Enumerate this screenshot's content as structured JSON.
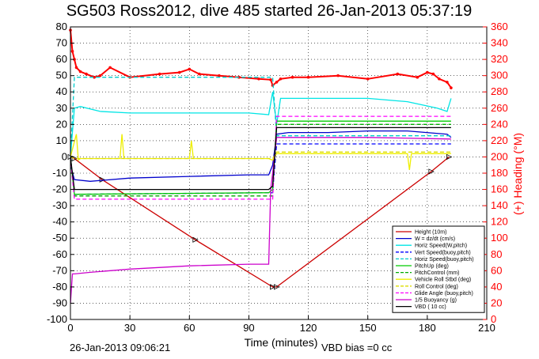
{
  "chart_data": {
    "type": "line",
    "title": "SG503 Ross2012, dive 485 started 26-Jan-2013 05:37:19",
    "xlabel": "Time (minutes)",
    "ylabel_right": "(+) Heading (°M)",
    "xlim": [
      0,
      210
    ],
    "ylim": [
      -100,
      80
    ],
    "ylim_right": [
      0,
      360
    ],
    "x_ticks": [
      "0",
      "30",
      "60",
      "90",
      "120",
      "150",
      "180",
      "210"
    ],
    "y_ticks": [
      "-100",
      "-90",
      "-80",
      "-70",
      "-60",
      "-50",
      "-40",
      "-30",
      "-20",
      "-10",
      "0",
      "10",
      "20",
      "30",
      "40",
      "50",
      "60",
      "70",
      "80"
    ],
    "y2_ticks": [
      "0",
      "20",
      "40",
      "60",
      "80",
      "100",
      "120",
      "140",
      "160",
      "180",
      "200",
      "220",
      "240",
      "260",
      "280",
      "300",
      "320",
      "340",
      "360"
    ],
    "grid": true,
    "legend_position": "bottom-right",
    "footer_left": "26-Jan-2013 09:06:21",
    "footer_right": "VBD bias =0 cc",
    "series": [
      {
        "name": "Heading",
        "color": "#ff0000",
        "axis": "right",
        "style": "solid",
        "markers": "dots",
        "x": [
          0,
          1,
          2,
          3,
          5,
          8,
          12,
          15,
          20,
          30,
          45,
          55,
          60,
          65,
          75,
          85,
          95,
          101,
          102,
          104,
          106,
          112,
          120,
          135,
          150,
          165,
          175,
          180,
          183,
          186,
          190,
          192
        ],
        "y": [
          356,
          330,
          320,
          310,
          305,
          302,
          298,
          300,
          310,
          298,
          302,
          304,
          308,
          302,
          300,
          298,
          296,
          295,
          288,
          292,
          296,
          298,
          298,
          300,
          296,
          302,
          298,
          304,
          302,
          296,
          292,
          285
        ]
      },
      {
        "name": "Height (10m)",
        "color": "#cc0000",
        "axis": "left",
        "style": "solid",
        "markers": "triangles",
        "x": [
          0,
          2,
          16,
          63,
          102,
          104,
          182,
          191
        ],
        "y": [
          0,
          -1,
          -14,
          -51,
          -80,
          -80,
          -9,
          0
        ]
      },
      {
        "name": "W = dz/dt (cm/s)",
        "color": "#0000cc",
        "axis": "left",
        "style": "solid",
        "x": [
          0,
          2,
          10,
          30,
          60,
          90,
          100,
          102,
          104,
          110,
          130,
          150,
          170,
          190,
          192
        ],
        "y": [
          -5,
          -14,
          -15,
          -13,
          -12,
          -11,
          -11,
          -5,
          14,
          15,
          15,
          16,
          16,
          14,
          12
        ]
      },
      {
        "name": "Horiz Speed(W,pitch)",
        "color": "#00e5e5",
        "axis": "left",
        "style": "solid",
        "x": [
          0,
          2,
          5,
          15,
          30,
          60,
          90,
          100,
          102,
          104,
          106,
          120,
          150,
          170,
          185,
          190,
          192
        ],
        "y": [
          0,
          30,
          31,
          28,
          27,
          27,
          27,
          26,
          40,
          20,
          36,
          36,
          36,
          34,
          30,
          28,
          36
        ]
      },
      {
        "name": "Vert Speed(buoy,pitch)",
        "color": "#0000ff",
        "axis": "left",
        "style": "dashed",
        "x": [
          0,
          2,
          102,
          104,
          192
        ],
        "y": [
          0,
          -23,
          -22,
          8,
          8
        ]
      },
      {
        "name": "Horiz Speed(buoy,pitch)",
        "color": "#00cccc",
        "axis": "left",
        "style": "dashed",
        "x": [
          0,
          2,
          102,
          104,
          192
        ],
        "y": [
          0,
          49,
          49,
          13,
          13
        ]
      },
      {
        "name": "PitchUp (deg)",
        "color": "#00cc00",
        "axis": "left",
        "style": "solid",
        "x": [
          0,
          2,
          100,
          102,
          104,
          192
        ],
        "y": [
          0,
          -23,
          -22,
          -20,
          22,
          22
        ]
      },
      {
        "name": "PitchControl (mm)",
        "color": "#00aa00",
        "axis": "left",
        "style": "dashed",
        "x": [
          0,
          2,
          102,
          104,
          192
        ],
        "y": [
          0,
          -24,
          -24,
          20,
          20
        ]
      },
      {
        "name": "Vehicle Roll Stbd (deg)",
        "color": "#eeee00",
        "axis": "left",
        "style": "solid",
        "x": [
          0,
          3,
          4,
          5,
          25,
          26,
          27,
          60,
          61,
          62,
          63,
          100,
          102,
          104,
          170,
          171,
          172,
          192
        ],
        "y": [
          0,
          14,
          -2,
          -1,
          -1,
          14,
          -1,
          -1,
          10,
          -1,
          -1,
          -1,
          -2,
          2,
          2,
          -8,
          2,
          2
        ]
      },
      {
        "name": "Roll Control (deg)",
        "color": "#dddd00",
        "axis": "left",
        "style": "dashed",
        "x": [
          0,
          2,
          102,
          104,
          192
        ],
        "y": [
          0,
          -1,
          -1,
          3,
          3
        ]
      },
      {
        "name": "Glide Angle (buoy,pitch)",
        "color": "#ff00ff",
        "axis": "left",
        "style": "dashed",
        "x": [
          0,
          2,
          102,
          104,
          192
        ],
        "y": [
          0,
          -26,
          -26,
          25,
          25
        ]
      },
      {
        "name": "1/5 Buoyancy (g)",
        "color": "#cc00cc",
        "axis": "left",
        "style": "solid",
        "x": [
          0,
          1,
          2,
          10,
          30,
          60,
          90,
          100,
          101,
          102,
          104,
          150,
          192
        ],
        "y": [
          -90,
          -72,
          -72,
          -71,
          -69,
          -67,
          -66,
          -66,
          -20,
          -10,
          12,
          12,
          11
        ]
      },
      {
        "name": "VBD ( 10 cc)",
        "color": "#000000",
        "axis": "left",
        "style": "solid",
        "x": [
          0,
          2,
          100,
          102,
          104,
          192
        ],
        "y": [
          0,
          -20,
          -20,
          -18,
          18,
          18
        ]
      }
    ]
  }
}
